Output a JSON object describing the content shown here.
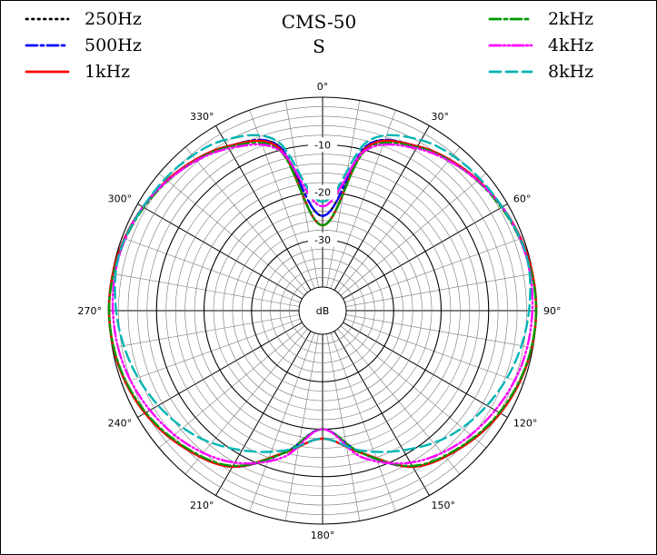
{
  "chart_data": {
    "type": "polar",
    "title": "CMS-50",
    "subtitle": "S",
    "radial_unit": "dB",
    "radial_range": [
      -40,
      0
    ],
    "radial_ticks": [
      {
        "value": -10,
        "label": "-10"
      },
      {
        "value": -20,
        "label": "-20"
      },
      {
        "value": -30,
        "label": "-30"
      }
    ],
    "angle_ticks": [
      {
        "deg": 0,
        "label": "0°"
      },
      {
        "deg": 30,
        "label": "30°"
      },
      {
        "deg": 60,
        "label": "60°"
      },
      {
        "deg": 90,
        "label": "90°"
      },
      {
        "deg": 120,
        "label": "120°"
      },
      {
        "deg": 150,
        "label": "150°"
      },
      {
        "deg": 180,
        "label": "180°"
      },
      {
        "deg": 210,
        "label": "210°"
      },
      {
        "deg": 240,
        "label": "240°"
      },
      {
        "deg": 270,
        "label": "270°"
      },
      {
        "deg": 300,
        "label": "300°"
      },
      {
        "deg": 330,
        "label": "330°"
      }
    ],
    "grid": true,
    "legend": {
      "left": "top-left",
      "right": "top-right"
    },
    "angles": [
      0,
      15,
      30,
      45,
      60,
      75,
      90,
      105,
      120,
      135,
      150,
      165,
      180,
      195,
      210,
      225,
      240,
      255,
      270,
      285,
      300,
      315,
      330,
      345
    ],
    "series": [
      {
        "name": "250Hz",
        "color": "#000000",
        "dash": "dotted",
        "legend_side": "left",
        "values": [
          -25,
          -9,
          -5,
          -2.8,
          -1.3,
          -0.3,
          0,
          -0.5,
          -1.8,
          -4,
          -7,
          -14,
          -20,
          -14,
          -7,
          -4,
          -1.8,
          -0.5,
          0,
          -0.3,
          -1.3,
          -2.8,
          -5,
          -9
        ]
      },
      {
        "name": "500Hz",
        "color": "#0000ff",
        "dash": "dashdot",
        "legend_side": "left",
        "values": [
          -25,
          -9,
          -5,
          -2.8,
          -1.3,
          -0.3,
          0,
          -0.5,
          -1.8,
          -4,
          -7,
          -14,
          -20,
          -14,
          -7,
          -4,
          -1.8,
          -0.5,
          0,
          -0.3,
          -1.3,
          -2.8,
          -5,
          -9
        ]
      },
      {
        "name": "1kHz",
        "color": "#ff0000",
        "dash": "solid",
        "legend_side": "left",
        "values": [
          -27,
          -9.5,
          -5,
          -2.8,
          -1.3,
          -0.3,
          0,
          -0.5,
          -1.8,
          -4,
          -7,
          -14,
          -18,
          -14,
          -7,
          -4,
          -1.8,
          -0.5,
          0,
          -0.3,
          -1.3,
          -2.8,
          -5,
          -9.5
        ]
      },
      {
        "name": "2kHz",
        "color": "#009900",
        "dash": "dashdot",
        "legend_side": "right",
        "values": [
          -27,
          -10,
          -5.2,
          -3,
          -1.5,
          -0.5,
          0,
          -0.6,
          -2,
          -4.2,
          -7.2,
          -14,
          -20,
          -14,
          -7.2,
          -4.2,
          -2,
          -0.6,
          0,
          -0.5,
          -1.5,
          -3,
          -5.2,
          -10
        ]
      },
      {
        "name": "4kHz",
        "color": "#ff00ff",
        "dash": "dashdotdot",
        "legend_side": "right",
        "values": [
          -23,
          -10,
          -5.5,
          -3,
          -1.3,
          -0.6,
          -0.8,
          -1.5,
          -3,
          -5,
          -8,
          -13,
          -20,
          -13,
          -8,
          -5,
          -3,
          -1.5,
          -0.8,
          -0.6,
          -1.3,
          -3,
          -5.5,
          -10
        ]
      },
      {
        "name": "8kHz",
        "color": "#00b4b4",
        "dash": "dashed",
        "legend_side": "right",
        "values": [
          -22,
          -8,
          -3.5,
          -2,
          -1.3,
          -0.5,
          -1.5,
          -3,
          -5,
          -7.5,
          -11,
          -14.5,
          -18,
          -14.5,
          -11,
          -7.5,
          -5,
          -3,
          -1.5,
          -0.5,
          -1.3,
          -2,
          -3.5,
          -8
        ]
      }
    ]
  }
}
